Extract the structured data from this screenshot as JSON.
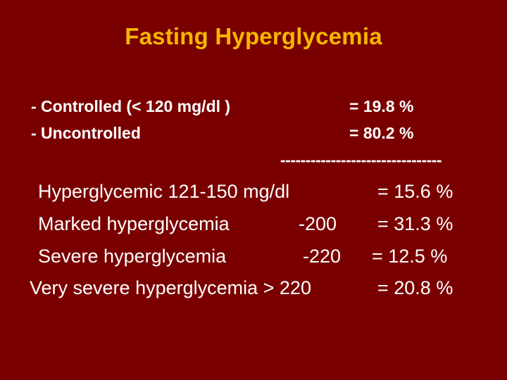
{
  "slide": {
    "title": "Fasting Hyperglycemia",
    "summary": [
      {
        "label": "- Controlled (< 120 mg/dl )",
        "value": "= 19.8 %"
      },
      {
        "label": "- Uncontrolled",
        "value": "= 80.2 %"
      }
    ],
    "separator": "--------------------------------",
    "breakdown": [
      {
        "label": "Hyperglycemic 121-150 mg/dl",
        "range": "",
        "value": "= 15.6 %"
      },
      {
        "label": "Marked hyperglycemia",
        "range": "-200",
        "value": "= 31.3 %"
      },
      {
        "label": "Severe hyperglycemia",
        "range": "-220",
        "value": "= 12.5 %"
      },
      {
        "label": "Very severe hyperglycemia > 220",
        "range": "",
        "value": "= 20.8 %"
      }
    ]
  },
  "colors": {
    "background": "#7a0000",
    "title": "#f5b700",
    "text": "#ffffff"
  }
}
